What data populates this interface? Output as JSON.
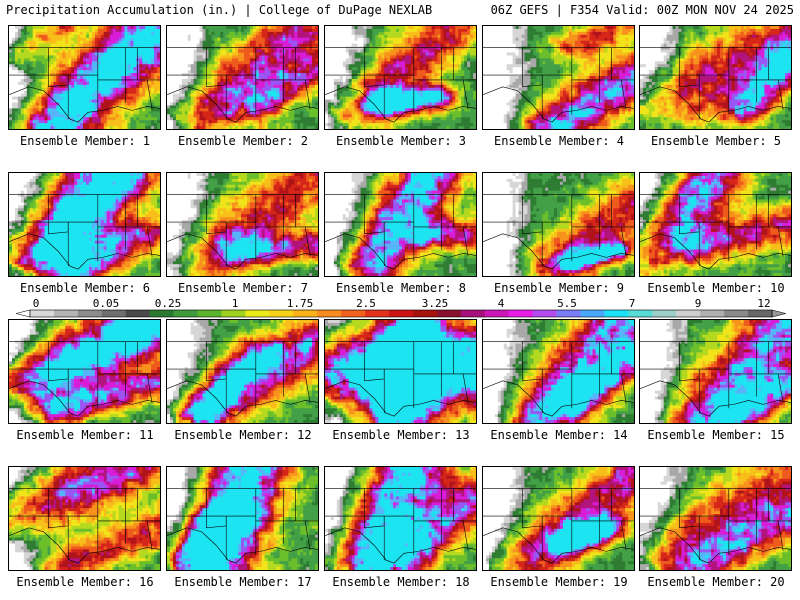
{
  "header": {
    "title": "Precipitation Accumulation (in.) | College of DuPage NEXLAB",
    "run_info": "06Z GEFS | F354 Valid: 00Z MON NOV 24 2025"
  },
  "colorbar": {
    "units": "in.",
    "tick_labels": [
      "0",
      "0.05",
      "0.25",
      "1",
      "1.75",
      "2.5",
      "3.25",
      "4",
      "5.5",
      "7",
      "9",
      "12"
    ],
    "colors": [
      "#d8d8d8",
      "#b4b4b4",
      "#8c8c8c",
      "#6e6e6e",
      "#4a4a4a",
      "#2a7a32",
      "#3e9a3a",
      "#5ab42c",
      "#9fd21e",
      "#eaeb18",
      "#f8d218",
      "#fbb11a",
      "#f98c1e",
      "#f2611e",
      "#e3321c",
      "#cc1414",
      "#a8120e",
      "#8a1030",
      "#a8107a",
      "#cc16b8",
      "#e81ce6",
      "#b44cf0",
      "#7a7cf8",
      "#4aa8fa",
      "#1ce1f8",
      "#58dcd6",
      "#9ad0c8",
      "#cfcfcf",
      "#b0b0b0",
      "#8a8a8a",
      "#686868"
    ]
  },
  "panels": [
    {
      "label": "Ensemble Member: 1"
    },
    {
      "label": "Ensemble Member: 2"
    },
    {
      "label": "Ensemble Member: 3"
    },
    {
      "label": "Ensemble Member: 4"
    },
    {
      "label": "Ensemble Member: 5"
    },
    {
      "label": "Ensemble Member: 6"
    },
    {
      "label": "Ensemble Member: 7"
    },
    {
      "label": "Ensemble Member: 8"
    },
    {
      "label": "Ensemble Member: 9"
    },
    {
      "label": "Ensemble Member: 10"
    },
    {
      "label": "Ensemble Member: 11"
    },
    {
      "label": "Ensemble Member: 12"
    },
    {
      "label": "Ensemble Member: 13"
    },
    {
      "label": "Ensemble Member: 14"
    },
    {
      "label": "Ensemble Member: 15"
    },
    {
      "label": "Ensemble Member: 16"
    },
    {
      "label": "Ensemble Member: 17"
    },
    {
      "label": "Ensemble Member: 18"
    },
    {
      "label": "Ensemble Member: 19"
    },
    {
      "label": "Ensemble Member: 20"
    }
  ]
}
